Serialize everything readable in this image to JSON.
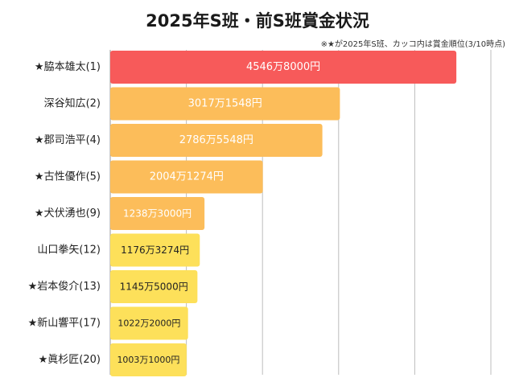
{
  "chart_data": {
    "type": "bar",
    "orientation": "horizontal",
    "title": "2025年S班・前S班賞金状況",
    "note": "※★が2025年S班、カッコ内は賞金順位(3/10時点)",
    "categories": [
      "★脇本雄太(1)",
      "深谷知広(2)",
      "★郡司浩平(4)",
      "★古性優作(5)",
      "★犬伏湧也(9)",
      "山口拳矢(12)",
      "★岩本俊介(13)",
      "★新山響平(17)",
      "★眞杉匠(20)"
    ],
    "values": [
      45468000,
      30171548,
      27865548,
      20041274,
      12383000,
      11763274,
      11455000,
      10222000,
      10031000
    ],
    "value_labels": [
      "4546万8000円",
      "3017万1548円",
      "2786万5548円",
      "2004万1274円",
      "1238万3000円",
      "1176万3274円",
      "1145万5000円",
      "1022万2000円",
      "1003万1000円"
    ],
    "bar_colors": [
      "#f75a5a",
      "#fcbd5a",
      "#fcbd5a",
      "#fcbd5a",
      "#fcbd5a",
      "#fde05a",
      "#fde05a",
      "#fde05a",
      "#fde05a"
    ],
    "label_colors": [
      "#ffffff",
      "#ffffff",
      "#ffffff",
      "#ffffff",
      "#ffffff",
      "#222222",
      "#222222",
      "#222222",
      "#222222"
    ],
    "xlim": [
      0,
      50000000
    ],
    "grid": true,
    "legend": "none"
  }
}
